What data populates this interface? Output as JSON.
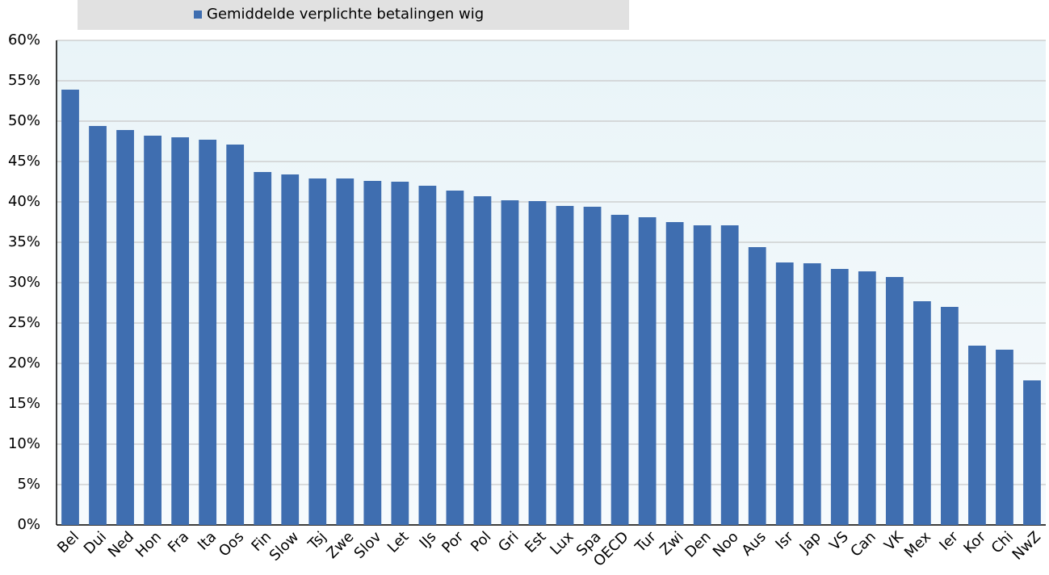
{
  "chart_data": {
    "type": "bar",
    "categories": [
      "Bel",
      "Dui",
      "Ned",
      "Hon",
      "Fra",
      "Ita",
      "Oos",
      "Fin",
      "Slow",
      "Tsj",
      "Zwe",
      "Slov",
      "Let",
      "IJs",
      "Por",
      "Pol",
      "Gri",
      "Est",
      "Lux",
      "Spa",
      "OECD",
      "Tur",
      "Zwi",
      "Den",
      "Noo",
      "Aus",
      "Isr",
      "Jap",
      "VS",
      "Can",
      "VK",
      "Mex",
      "Ier",
      "Kor",
      "Chi",
      "NwZ"
    ],
    "series": [
      {
        "name": "Gemiddelde verplichte betalingen wig",
        "color": "#3f6eb0",
        "values": [
          53.9,
          49.4,
          48.9,
          48.2,
          48.0,
          47.7,
          47.1,
          43.7,
          43.4,
          42.9,
          42.9,
          42.6,
          42.5,
          42.0,
          41.4,
          40.7,
          40.2,
          40.1,
          39.5,
          39.4,
          38.4,
          38.1,
          37.5,
          37.1,
          37.1,
          34.4,
          32.5,
          32.4,
          31.7,
          31.4,
          30.7,
          27.7,
          27.0,
          22.2,
          21.7,
          17.9
        ]
      }
    ],
    "ylim": [
      0,
      60
    ],
    "yticks": [
      {
        "value": 0,
        "label": "0%"
      },
      {
        "value": 5,
        "label": "5%"
      },
      {
        "value": 10,
        "label": "10%"
      },
      {
        "value": 15,
        "label": "15%"
      },
      {
        "value": 20,
        "label": "20%"
      },
      {
        "value": 25,
        "label": "25%"
      },
      {
        "value": 30,
        "label": "30%"
      },
      {
        "value": 35,
        "label": "35%"
      },
      {
        "value": 40,
        "label": "40%"
      },
      {
        "value": 45,
        "label": "45%"
      },
      {
        "value": 50,
        "label": "50%"
      },
      {
        "value": 55,
        "label": "55%"
      },
      {
        "value": 60,
        "label": "60%"
      }
    ],
    "grid": true
  }
}
